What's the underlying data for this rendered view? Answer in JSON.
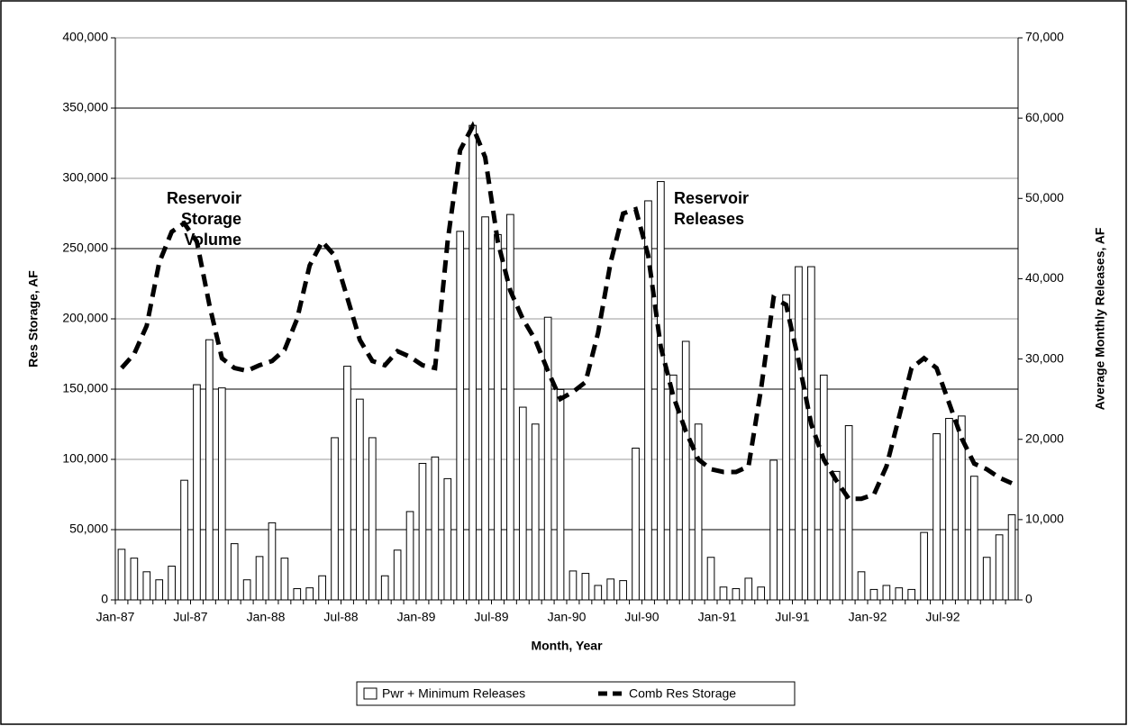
{
  "chart_data": {
    "type": "bar_line",
    "categories": [
      "Jan-87",
      null,
      null,
      null,
      null,
      null,
      "Jul-87",
      null,
      null,
      null,
      null,
      null,
      "Jan-88",
      null,
      null,
      null,
      null,
      null,
      "Jul-88",
      null,
      null,
      null,
      null,
      null,
      "Jan-89",
      null,
      null,
      null,
      null,
      null,
      "Jul-89",
      null,
      null,
      null,
      null,
      null,
      "Jan-90",
      null,
      null,
      null,
      null,
      null,
      "Jul-90",
      null,
      null,
      null,
      null,
      null,
      "Jan-91",
      null,
      null,
      null,
      null,
      null,
      "Jul-91",
      null,
      null,
      null,
      null,
      null,
      "Jan-92",
      null,
      null,
      null,
      null,
      null,
      "Jul-92",
      null,
      null,
      null,
      null,
      null
    ],
    "series": [
      {
        "name": "Pwr + Minimum Releases",
        "kind": "bar",
        "axis": "y2",
        "color": "#ffffff",
        "values": [
          6300,
          5200,
          3500,
          2500,
          4200,
          14900,
          26800,
          32400,
          26400,
          7000,
          2500,
          5400,
          9600,
          5200,
          1400,
          1500,
          3000,
          20200,
          29100,
          25000,
          20200,
          3000,
          6200,
          11000,
          17000,
          17800,
          15100,
          45900,
          59100,
          47700,
          45500,
          48000,
          24000,
          21900,
          35200,
          26200,
          3600,
          3300,
          1800,
          2600,
          2400,
          18900,
          49700,
          52100,
          28000,
          32200,
          21900,
          5300,
          1600,
          1400,
          2700,
          1600,
          17400,
          38000,
          41500,
          41500,
          28000,
          16000,
          21700,
          3500,
          1300,
          1800,
          1500,
          1300,
          8400,
          20700,
          22600,
          22900,
          15400,
          5300,
          8100,
          10600
        ]
      },
      {
        "name": "Comb Res Storage",
        "kind": "line",
        "axis": "y",
        "color": "#000000",
        "values": [
          165000,
          175000,
          195000,
          240000,
          262000,
          268000,
          255000,
          210000,
          172000,
          165000,
          163000,
          167000,
          170000,
          178000,
          200000,
          238000,
          255000,
          245000,
          215000,
          185000,
          170000,
          167000,
          177000,
          173000,
          167000,
          165000,
          255000,
          320000,
          337000,
          315000,
          255000,
          220000,
          200000,
          185000,
          163000,
          143000,
          148000,
          155000,
          190000,
          240000,
          275000,
          278000,
          245000,
          180000,
          145000,
          120000,
          100000,
          93000,
          91000,
          91000,
          95000,
          150000,
          215000,
          210000,
          170000,
          125000,
          100000,
          85000,
          72000,
          72000,
          75000,
          95000,
          130000,
          165000,
          172000,
          165000,
          140000,
          115000,
          97000,
          93000,
          87000,
          83000
        ]
      }
    ],
    "ylabel": "Res Storage, AF",
    "y2label": "Average Monthly Releases, AF",
    "xlabel": "Month, Year",
    "ylim": [
      0,
      400000
    ],
    "yticks": [
      0,
      {
        "value": 50000,
        "label": "50,000"
      },
      {
        "value": 100000,
        "label": "100,000"
      },
      {
        "value": 150000,
        "label": "150,000"
      },
      {
        "value": 200000,
        "label": "200,000"
      },
      {
        "value": 250000,
        "label": "250,000"
      },
      {
        "value": 300000,
        "label": "300,000"
      },
      {
        "value": 350000,
        "label": "350,000"
      },
      {
        "value": 400000,
        "label": "400,000"
      }
    ],
    "y2lim": [
      0,
      70000
    ],
    "y2ticks": [
      0,
      {
        "value": 10000,
        "label": "10,000"
      },
      {
        "value": 20000,
        "label": "20,000"
      },
      {
        "value": 30000,
        "label": "30,000"
      },
      {
        "value": 40000,
        "label": "40,000"
      },
      {
        "value": 50000,
        "label": "50,000"
      },
      {
        "value": 60000,
        "label": "60,000"
      },
      {
        "value": 70000,
        "label": "70,000"
      }
    ],
    "grid": true,
    "legend": "bottom",
    "annotations": [
      {
        "lines": [
          "Reservoir",
          "Storage",
          "Volume"
        ]
      },
      {
        "lines": [
          "Reservoir",
          "Releases"
        ]
      }
    ]
  }
}
